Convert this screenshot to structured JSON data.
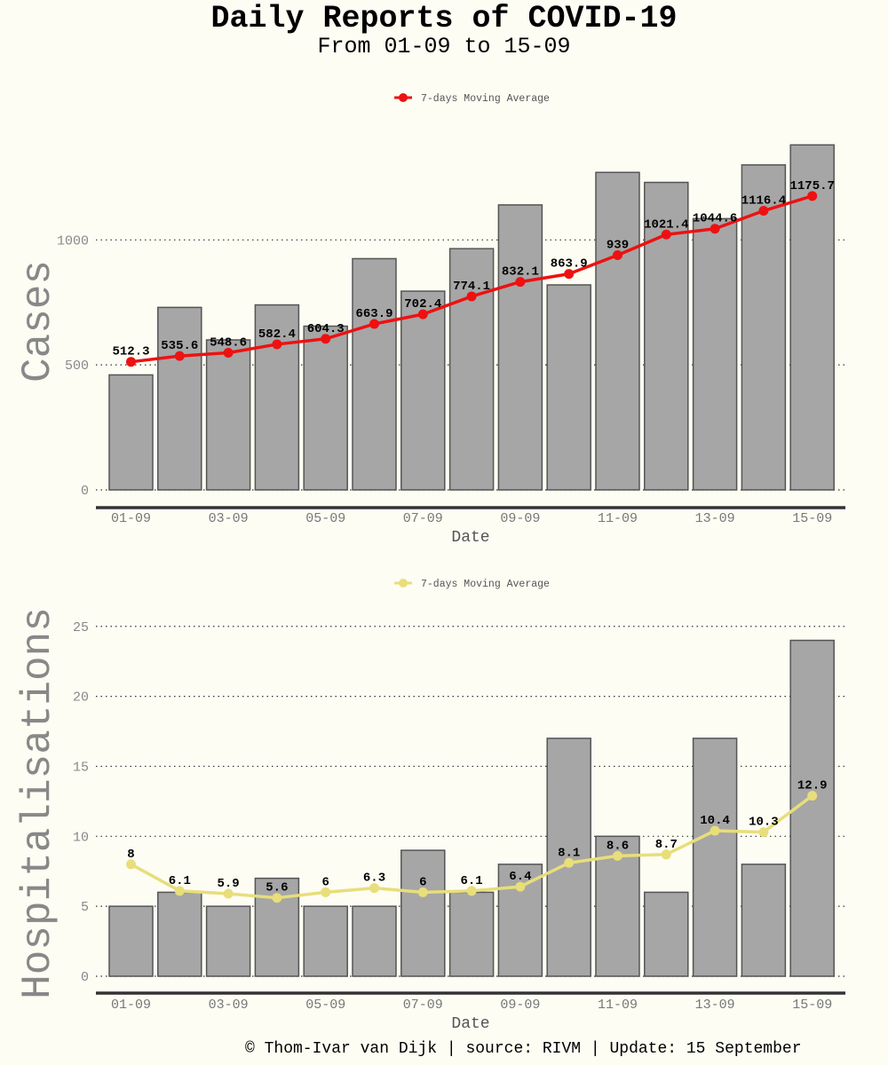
{
  "title": "Daily Reports of COVID-19",
  "subtitle": "From 01-09 to 15-09",
  "footer": "© Thom-Ivar van Dijk | source: RIVM | Update: 15 September",
  "colors": {
    "background": "#fdfdf4",
    "bar": "#a6a6a6",
    "bar_border": "#555555",
    "cases_line": "#ee1111",
    "hosp_line": "#e8de7a"
  },
  "chart_data": [
    {
      "type": "bar",
      "ylabel": "Cases",
      "xlabel": "Date",
      "legend": "7-days Moving Average",
      "legend_position": "top-center",
      "grid": "horizontal dotted",
      "ylim": [
        0,
        1420
      ],
      "yticks": [
        0,
        500,
        1000
      ],
      "categories": [
        "01-09",
        "02-09",
        "03-09",
        "04-09",
        "05-09",
        "06-09",
        "07-09",
        "08-09",
        "09-09",
        "10-09",
        "11-09",
        "12-09",
        "13-09",
        "14-09",
        "15-09"
      ],
      "xtick_labels": [
        "01-09",
        "03-09",
        "05-09",
        "07-09",
        "09-09",
        "11-09",
        "13-09",
        "15-09"
      ],
      "bar_values": [
        460,
        730,
        600,
        740,
        655,
        925,
        795,
        965,
        1140,
        820,
        1270,
        1230,
        1085,
        1300,
        1380
      ],
      "line_values": [
        512.3,
        535.6,
        548.6,
        582.4,
        604.3,
        663.9,
        702.4,
        774.1,
        832.1,
        863.9,
        939,
        1021.4,
        1044.6,
        1116.4,
        1175.7
      ],
      "line_labels": [
        "512.3",
        "535.6",
        "548.6",
        "582.4",
        "604.3",
        "663.9",
        "702.4",
        "774.1",
        "832.1",
        "863.9",
        "939",
        "1021.4",
        "1044.6",
        "1116.4",
        "1175.7"
      ]
    },
    {
      "type": "bar",
      "ylabel": "Hospitalisations",
      "xlabel": "Date",
      "legend": "7-days Moving Average",
      "legend_position": "top-center",
      "grid": "horizontal dotted",
      "ylim": [
        0,
        26
      ],
      "yticks": [
        0,
        5,
        10,
        15,
        20,
        25
      ],
      "categories": [
        "01-09",
        "02-09",
        "03-09",
        "04-09",
        "05-09",
        "06-09",
        "07-09",
        "08-09",
        "09-09",
        "10-09",
        "11-09",
        "12-09",
        "13-09",
        "14-09",
        "15-09"
      ],
      "xtick_labels": [
        "01-09",
        "03-09",
        "05-09",
        "07-09",
        "09-09",
        "11-09",
        "13-09",
        "15-09"
      ],
      "bar_values": [
        5,
        6,
        5,
        7,
        5,
        5,
        9,
        6,
        8,
        17,
        10,
        6,
        17,
        8,
        24
      ],
      "line_values": [
        8,
        6.1,
        5.9,
        5.6,
        6,
        6.3,
        6,
        6.1,
        6.4,
        8.1,
        8.6,
        8.7,
        10.4,
        10.3,
        12.9
      ],
      "line_labels": [
        "8",
        "6.1",
        "5.9",
        "5.6",
        "6",
        "6.3",
        "6",
        "6.1",
        "6.4",
        "8.1",
        "8.6",
        "8.7",
        "10.4",
        "10.3",
        "12.9"
      ]
    }
  ]
}
